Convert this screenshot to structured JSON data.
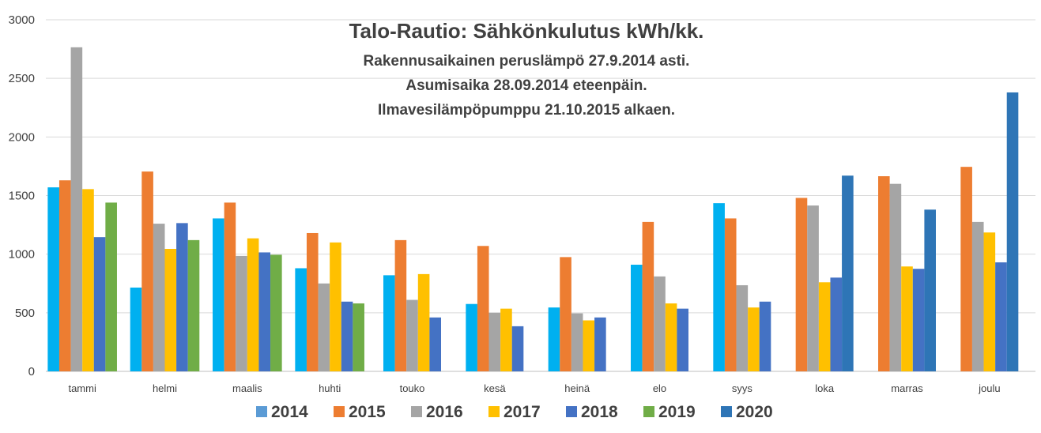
{
  "chart_data": {
    "type": "bar",
    "title_lines": [
      "Talo-Rautio: Sähkönkulutus kWh/kk.",
      "Rakennusaikainen peruslämpö 27.9.2014 asti.",
      "Asumisaika 28.09.2014 eteenpäin.",
      "Ilmavesilämpöpumppu 21.10.2015 alkaen."
    ],
    "xlabel": "",
    "ylabel": "",
    "ylim": [
      0,
      3000
    ],
    "yticks": [
      0,
      500,
      1000,
      1500,
      2000,
      2500,
      3000
    ],
    "grid": true,
    "legend_position": "bottom",
    "categories": [
      "tammi",
      "helmi",
      "maalis",
      "huhti",
      "touko",
      "kesä",
      "heinä",
      "elo",
      "syys",
      "loka",
      "marras",
      "joulu"
    ],
    "series": [
      {
        "name": "2014",
        "color": "#00B0F0",
        "values": [
          1570,
          715,
          1305,
          880,
          820,
          575,
          545,
          910,
          1435,
          null,
          null,
          null
        ]
      },
      {
        "name": "2015",
        "color": "#ED7D31",
        "values": [
          1630,
          1705,
          1440,
          1180,
          1120,
          1070,
          975,
          1275,
          1305,
          1480,
          1665,
          1745
        ]
      },
      {
        "name": "2016",
        "color": "#A5A5A5",
        "values": [
          2765,
          1260,
          985,
          750,
          610,
          500,
          495,
          810,
          735,
          1415,
          1600,
          1275
        ]
      },
      {
        "name": "2017",
        "color": "#FFC000",
        "values": [
          1555,
          1045,
          1135,
          1100,
          830,
          535,
          435,
          580,
          545,
          760,
          895,
          1185
        ]
      },
      {
        "name": "2018",
        "color": "#4472C4",
        "values": [
          1145,
          1265,
          1015,
          595,
          460,
          385,
          460,
          535,
          595,
          800,
          875,
          930
        ]
      },
      {
        "name": "2019",
        "color": "#70AD47",
        "values": [
          1440,
          1120,
          995,
          580,
          null,
          null,
          null,
          null,
          null,
          null,
          null,
          null
        ]
      },
      {
        "name": "2020",
        "color": "#2E75B6",
        "values": [
          null,
          null,
          null,
          null,
          null,
          null,
          null,
          null,
          null,
          1670,
          1380,
          2380
        ]
      }
    ],
    "legend": [
      {
        "label": "2014",
        "color": "#5B9BD5"
      },
      {
        "label": "2015",
        "color": "#ED7D31"
      },
      {
        "label": "2016",
        "color": "#A5A5A5"
      },
      {
        "label": "2017",
        "color": "#FFC000"
      },
      {
        "label": "2018",
        "color": "#4472C4"
      },
      {
        "label": "2019",
        "color": "#70AD47"
      },
      {
        "label": "2020",
        "color": "#2E75B6"
      }
    ]
  }
}
